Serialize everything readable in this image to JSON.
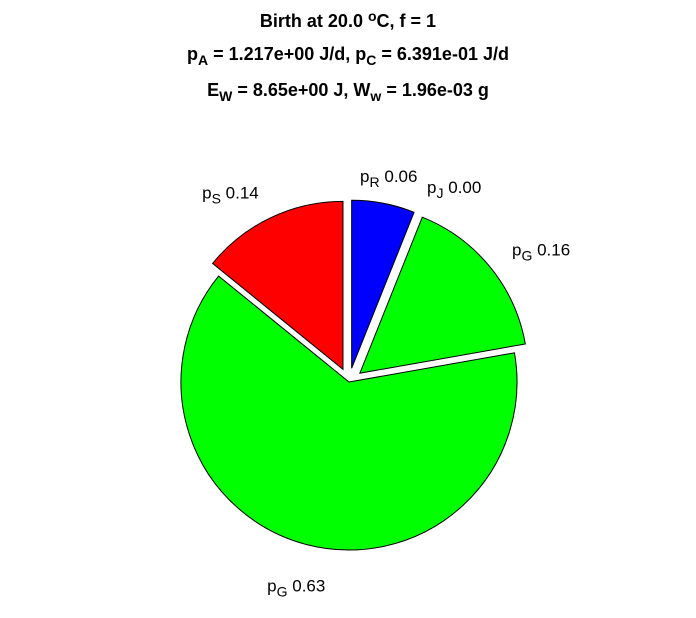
{
  "chart_data": {
    "type": "pie",
    "title": [
      [
        {
          "text": "Birth at 20.0 "
        },
        {
          "sup": "o"
        },
        {
          "text": "C, f = 1"
        }
      ],
      [
        {
          "text": "p"
        },
        {
          "sub": "A"
        },
        {
          "text": " = 1.217e+00 J/d, p"
        },
        {
          "sub": "C"
        },
        {
          "text": " = 6.391e-01 J/d"
        }
      ],
      [
        {
          "text": "E"
        },
        {
          "sub": "W"
        },
        {
          "text": " = 8.65e+00 J, W"
        },
        {
          "sub": "w"
        },
        {
          "text": " = 1.96e-03 g"
        }
      ]
    ],
    "categories": [
      {
        "text": "p",
        "sub": "R"
      },
      {
        "text": "p",
        "sub": "J"
      },
      {
        "text": "p",
        "sub": "G"
      },
      {
        "text": "p",
        "sub": "G"
      },
      {
        "text": "p",
        "sub": "S"
      }
    ],
    "values": [
      0.06,
      0.0,
      0.16,
      0.63,
      0.14
    ],
    "value_labels": [
      "0.06",
      "0.00",
      "0.16",
      "0.63",
      "0.14"
    ],
    "colors": [
      "#0000ff",
      "#00ff00",
      "#00ff00",
      "#00ff00",
      "#ff0000"
    ],
    "explode": [
      true,
      true,
      true,
      false,
      true
    ]
  }
}
